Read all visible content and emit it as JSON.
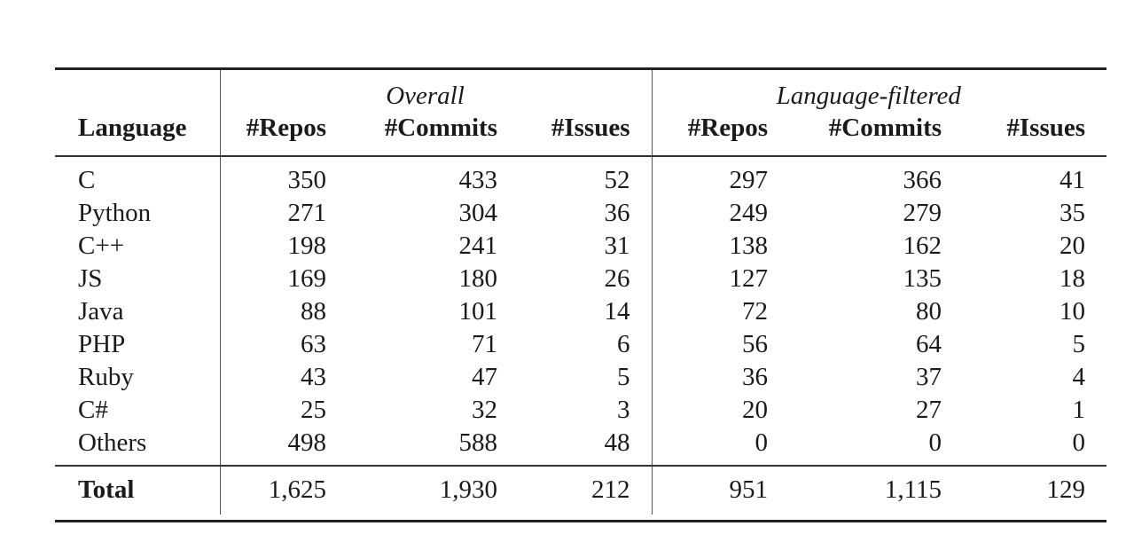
{
  "header": {
    "group_overall": "Overall",
    "group_filtered": "Language-filtered",
    "col_language": "Language",
    "col_repos": "#Repos",
    "col_commits": "#Commits",
    "col_issues": "#Issues"
  },
  "rows": [
    {
      "language": "C",
      "o_repos": "350",
      "o_commits": "433",
      "o_issues": "52",
      "f_repos": "297",
      "f_commits": "366",
      "f_issues": "41"
    },
    {
      "language": "Python",
      "o_repos": "271",
      "o_commits": "304",
      "o_issues": "36",
      "f_repos": "249",
      "f_commits": "279",
      "f_issues": "35"
    },
    {
      "language": "C++",
      "o_repos": "198",
      "o_commits": "241",
      "o_issues": "31",
      "f_repos": "138",
      "f_commits": "162",
      "f_issues": "20"
    },
    {
      "language": "JS",
      "o_repos": "169",
      "o_commits": "180",
      "o_issues": "26",
      "f_repos": "127",
      "f_commits": "135",
      "f_issues": "18"
    },
    {
      "language": "Java",
      "o_repos": "88",
      "o_commits": "101",
      "o_issues": "14",
      "f_repos": "72",
      "f_commits": "80",
      "f_issues": "10"
    },
    {
      "language": "PHP",
      "o_repos": "63",
      "o_commits": "71",
      "o_issues": "6",
      "f_repos": "56",
      "f_commits": "64",
      "f_issues": "5"
    },
    {
      "language": "Ruby",
      "o_repos": "43",
      "o_commits": "47",
      "o_issues": "5",
      "f_repos": "36",
      "f_commits": "37",
      "f_issues": "4"
    },
    {
      "language": "C#",
      "o_repos": "25",
      "o_commits": "32",
      "o_issues": "3",
      "f_repos": "20",
      "f_commits": "27",
      "f_issues": "1"
    },
    {
      "language": "Others",
      "o_repos": "498",
      "o_commits": "588",
      "o_issues": "48",
      "f_repos": "0",
      "f_commits": "0",
      "f_issues": "0"
    }
  ],
  "total": {
    "label": "Total",
    "o_repos": "1,625",
    "o_commits": "1,930",
    "o_issues": "212",
    "f_repos": "951",
    "f_commits": "1,115",
    "f_issues": "129"
  }
}
